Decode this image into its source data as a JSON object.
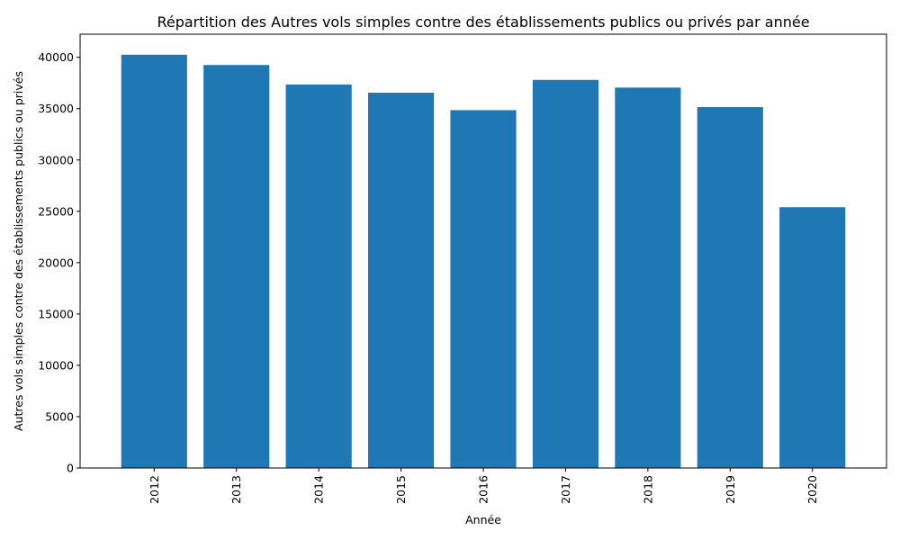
{
  "chart_data": {
    "type": "bar",
    "title": "Répartition des Autres vols simples contre des établissements publics ou privés par année",
    "xlabel": "Année",
    "ylabel": "Autres vols simples contre des établissements publics ou privés",
    "categories": [
      "2012",
      "2013",
      "2014",
      "2015",
      "2016",
      "2017",
      "2018",
      "2019",
      "2020"
    ],
    "values": [
      40250,
      39250,
      37350,
      36550,
      34850,
      37800,
      37050,
      35150,
      25400
    ],
    "ylim": [
      0,
      42250
    ],
    "yticks": [
      0,
      5000,
      10000,
      15000,
      20000,
      25000,
      30000,
      35000,
      40000
    ],
    "bar_color": "#1f77b4",
    "grid": false,
    "legend": "none"
  }
}
